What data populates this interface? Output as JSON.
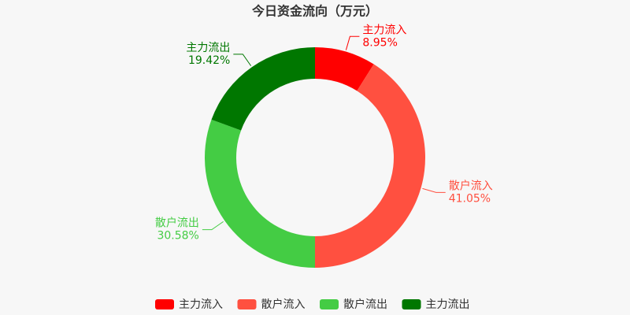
{
  "chart_data": {
    "type": "donut",
    "title": "今日资金流向（万元）",
    "categories": [
      "主力流入",
      "散户流入",
      "散户流出",
      "主力流出"
    ],
    "values": [
      8.95,
      41.05,
      30.58,
      19.42
    ],
    "value_labels": [
      "8.95%",
      "41.05%",
      "30.58%",
      "19.42%"
    ],
    "colors": [
      "#ff0000",
      "#ff5040",
      "#44cc44",
      "#007700"
    ]
  }
}
